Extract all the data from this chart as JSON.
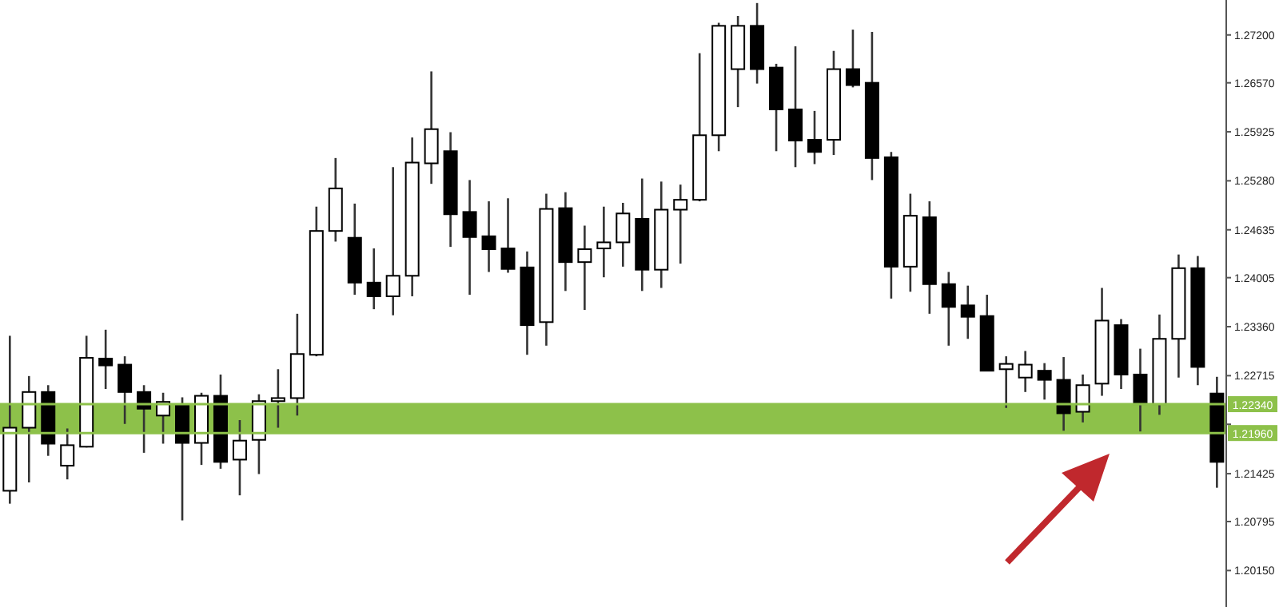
{
  "chart_data": {
    "type": "candlestick",
    "tick_labels": "y",
    "grid": false,
    "legend": false,
    "categories": [
      null,
      null,
      null,
      null,
      null,
      null,
      null,
      null,
      null,
      null,
      null,
      null,
      null,
      null,
      null,
      null,
      null,
      null,
      null,
      null,
      null,
      null,
      null,
      null,
      null,
      null,
      null,
      null,
      null,
      null,
      null,
      null,
      null,
      null,
      null,
      null,
      null,
      null,
      null,
      null,
      null,
      null,
      null,
      null,
      null,
      null,
      null,
      null,
      null,
      null,
      null,
      null,
      null,
      null,
      null,
      null,
      null,
      null,
      null,
      null,
      null,
      null,
      null,
      null
    ],
    "ohlc": [
      [
        1.212,
        1.2324,
        1.2103,
        1.2203
      ],
      [
        1.2203,
        1.2271,
        1.2131,
        1.225
      ],
      [
        1.225,
        1.2259,
        1.2166,
        1.2182
      ],
      [
        1.2153,
        1.2202,
        1.2135,
        1.218
      ],
      [
        1.2178,
        1.2324,
        1.2177,
        1.2295
      ],
      [
        1.2294,
        1.2332,
        1.2254,
        1.2285
      ],
      [
        1.2286,
        1.2297,
        1.2208,
        1.225
      ],
      [
        1.225,
        1.2259,
        1.217,
        1.2228
      ],
      [
        1.2219,
        1.2249,
        1.2182,
        1.2237
      ],
      [
        1.2234,
        1.2243,
        1.2081,
        1.2183
      ],
      [
        1.2183,
        1.2249,
        1.2154,
        1.2245
      ],
      [
        1.2245,
        1.2273,
        1.2149,
        1.2158
      ],
      [
        1.2161,
        1.2213,
        1.2114,
        1.2186
      ],
      [
        1.2187,
        1.2247,
        1.2142,
        1.2238
      ],
      [
        1.2238,
        1.228,
        1.2203,
        1.2242
      ],
      [
        1.2242,
        1.2353,
        1.2219,
        1.23
      ],
      [
        1.2299,
        1.2494,
        1.2297,
        1.2462
      ],
      [
        1.2462,
        1.2558,
        1.2448,
        1.2518
      ],
      [
        1.2453,
        1.2498,
        1.2378,
        1.2394
      ],
      [
        1.2394,
        1.2439,
        1.2359,
        1.2376
      ],
      [
        1.2376,
        1.2546,
        1.2351,
        1.2403
      ],
      [
        1.2403,
        1.2585,
        1.2376,
        1.2552
      ],
      [
        1.2551,
        1.2672,
        1.2524,
        1.2596
      ],
      [
        1.2567,
        1.2592,
        1.2441,
        1.2484
      ],
      [
        1.2487,
        1.2529,
        1.2378,
        1.2454
      ],
      [
        1.2455,
        1.2501,
        1.2408,
        1.2438
      ],
      [
        1.2439,
        1.2505,
        1.2407,
        1.2412
      ],
      [
        1.2414,
        1.2435,
        1.2299,
        1.2338
      ],
      [
        1.2342,
        1.2511,
        1.2311,
        1.2491
      ],
      [
        1.2492,
        1.2513,
        1.2383,
        1.2421
      ],
      [
        1.2421,
        1.2469,
        1.2358,
        1.2438
      ],
      [
        1.2439,
        1.2494,
        1.2401,
        1.2447
      ],
      [
        1.2447,
        1.2499,
        1.2415,
        1.2485
      ],
      [
        1.2478,
        1.2531,
        1.2383,
        1.2411
      ],
      [
        1.2411,
        1.2527,
        1.2387,
        1.249
      ],
      [
        1.249,
        1.2523,
        1.2419,
        1.2503
      ],
      [
        1.2503,
        1.2696,
        1.2501,
        1.2588
      ],
      [
        1.2588,
        1.2736,
        1.2567,
        1.2732
      ],
      [
        1.2675,
        1.2745,
        1.2625,
        1.2732
      ],
      [
        1.2732,
        1.2762,
        1.2656,
        1.2675
      ],
      [
        1.2677,
        1.2682,
        1.2567,
        1.2622
      ],
      [
        1.2622,
        1.2705,
        1.2546,
        1.2581
      ],
      [
        1.2582,
        1.262,
        1.255,
        1.2566
      ],
      [
        1.2582,
        1.2699,
        1.2562,
        1.2675
      ],
      [
        1.2675,
        1.2727,
        1.2651,
        1.2654
      ],
      [
        1.2657,
        1.2724,
        1.2529,
        1.2558
      ],
      [
        1.2559,
        1.2566,
        1.2373,
        1.2415
      ],
      [
        1.2415,
        1.2511,
        1.2382,
        1.2482
      ],
      [
        1.248,
        1.2501,
        1.2353,
        1.2392
      ],
      [
        1.2392,
        1.2408,
        1.2311,
        1.2362
      ],
      [
        1.2364,
        1.239,
        1.232,
        1.2349
      ],
      [
        1.235,
        1.2378,
        1.2278,
        1.2278
      ],
      [
        1.228,
        1.2297,
        1.2229,
        1.2287
      ],
      [
        1.2269,
        1.2304,
        1.225,
        1.2286
      ],
      [
        1.2278,
        1.2288,
        1.224,
        1.2266
      ],
      [
        1.2266,
        1.2296,
        1.2199,
        1.2222
      ],
      [
        1.2224,
        1.2273,
        1.221,
        1.2259
      ],
      [
        1.2261,
        1.2387,
        1.2245,
        1.2344
      ],
      [
        1.2338,
        1.2346,
        1.2254,
        1.2273
      ],
      [
        1.2273,
        1.2307,
        1.2198,
        1.2234
      ],
      [
        1.2234,
        1.2352,
        1.222,
        1.232
      ],
      [
        1.232,
        1.2431,
        1.2269,
        1.2413
      ],
      [
        1.2413,
        1.2429,
        1.2259,
        1.2283
      ],
      [
        1.2248,
        1.227,
        1.2124,
        1.2158
      ]
    ],
    "ylim": [
      1.1967,
      1.2766
    ],
    "yticks": [
      {
        "value": 1.2015,
        "label": "1.20150"
      },
      {
        "value": 1.20795,
        "label": "1.20795"
      },
      {
        "value": 1.21425,
        "label": "1.21425"
      },
      {
        "value": 1.22075,
        "label": null
      },
      {
        "value": 1.22715,
        "label": "1.22715"
      },
      {
        "value": 1.2336,
        "label": "1.23360"
      },
      {
        "value": 1.24005,
        "label": "1.24005"
      },
      {
        "value": 1.24635,
        "label": "1.24635"
      },
      {
        "value": 1.2528,
        "label": "1.25280"
      },
      {
        "value": 1.25925,
        "label": "1.25925"
      },
      {
        "value": 1.2657,
        "label": "1.26570"
      },
      {
        "value": 1.272,
        "label": "1.27200"
      }
    ],
    "ref_lines": [
      {
        "axis": "y",
        "value": 1.2234,
        "label": "1.22340",
        "color": "#8dc14a"
      },
      {
        "axis": "y",
        "value": 1.2196,
        "label": "1.21960",
        "color": "#8dc14a"
      }
    ],
    "bands": [
      {
        "axis": "y",
        "from": 1.2196,
        "to": 1.2234,
        "color": "#8dc14a"
      }
    ]
  }
}
